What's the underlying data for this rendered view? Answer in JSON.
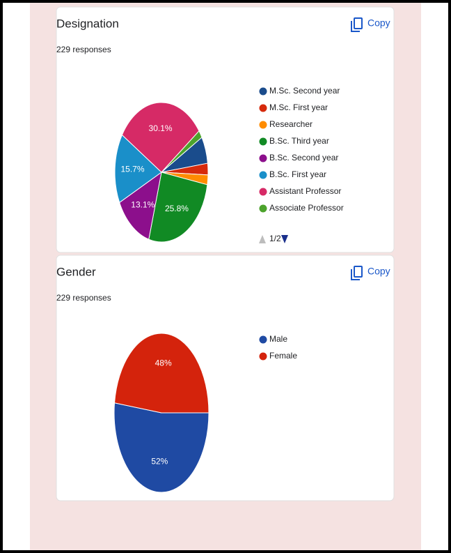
{
  "chart_data": [
    {
      "type": "pie",
      "title": "Designation",
      "subtitle": "229 responses",
      "copy_label": "Copy",
      "legend_page": "1/2",
      "categories": [
        "M.Sc. Second year",
        "M.Sc. First year",
        "Researcher",
        "B.Sc. Third year",
        "B.Sc. Second year",
        "B.Sc. First year",
        "Assistant Professor",
        "Associate Professor"
      ],
      "values": [
        6.1,
        2.6,
        2.2,
        25.8,
        13.1,
        15.7,
        30.1,
        1.7
      ],
      "value_labels": [
        null,
        null,
        null,
        "25.8%",
        "13.1%",
        "15.7%",
        "30.1%",
        null
      ],
      "colors": [
        "#1a4c8c",
        "#d62a0c",
        "#ff8c00",
        "#118a24",
        "#8c0f8c",
        "#1a8fc9",
        "#d62a66",
        "#4ca32c"
      ]
    },
    {
      "type": "pie",
      "title": "Gender",
      "subtitle": "229 responses",
      "copy_label": "Copy",
      "categories": [
        "Male",
        "Female"
      ],
      "values": [
        52,
        48
      ],
      "value_labels": [
        "52%",
        "48%"
      ],
      "colors": [
        "#1f4aa3",
        "#d4230c"
      ]
    }
  ]
}
